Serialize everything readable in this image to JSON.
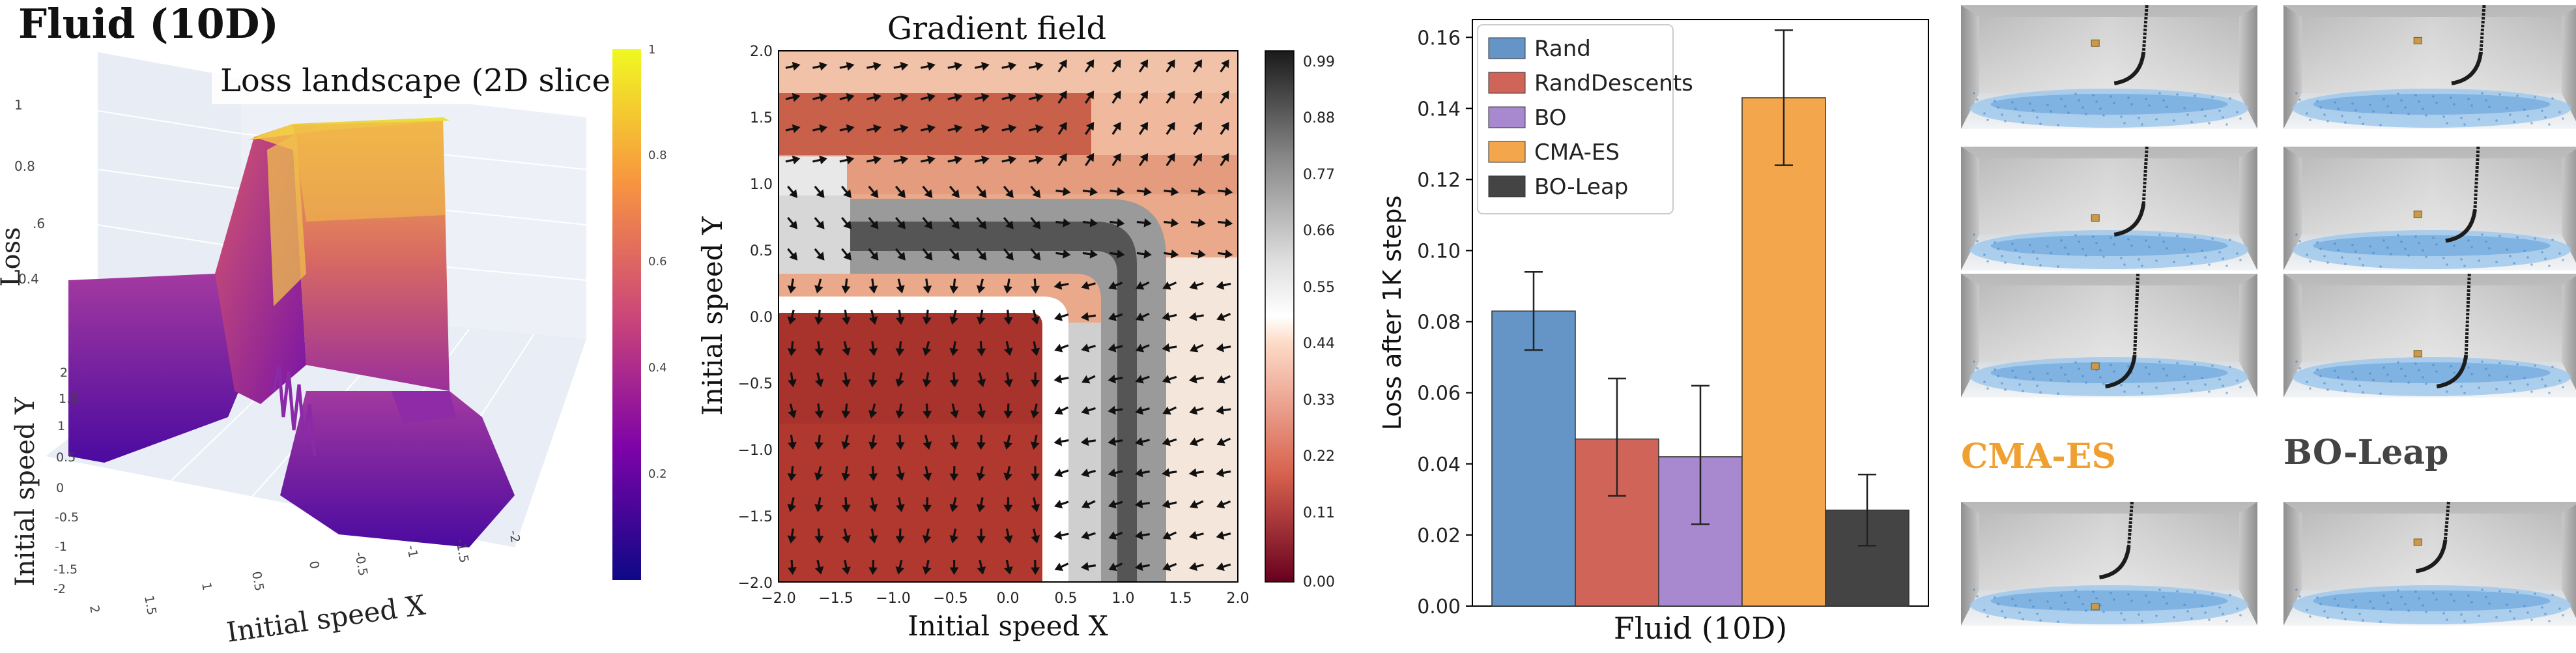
{
  "header": {
    "title": "Fluid (10D)"
  },
  "colors": {
    "rand": "#6495c6",
    "randdescents": "#d16459",
    "bo": "#a889cf",
    "cmaes": "#f3a64b",
    "boleap": "#444444",
    "cmaes_label": "#f0a030",
    "boleap_label": "#444444"
  },
  "chart_data": [
    {
      "type": "surface",
      "title": "Loss landscape (2D slice)",
      "xlabel": "Initial speed X",
      "ylabel": "Initial speed Y",
      "zlabel": "Loss",
      "x_ticks": [
        "2",
        "1.5",
        "1",
        "0.5",
        "0",
        "-0.5",
        "-1",
        "-1.5",
        "-2"
      ],
      "y_ticks": [
        "2",
        "1.5",
        "1",
        "0.5",
        "0",
        "-0.5",
        "-1",
        "-1.5",
        "-2"
      ],
      "z_ticks": [
        "1",
        "0.8",
        ".6",
        "0.4"
      ],
      "xlim": [
        -2,
        2
      ],
      "ylim": [
        -2,
        2
      ],
      "zlim": [
        0,
        1
      ],
      "colorbar": {
        "ticks": [
          "1",
          "0.8",
          "0.6",
          "0.4",
          "0.2"
        ],
        "range": [
          0,
          1
        ],
        "colormap": "plasma"
      }
    },
    {
      "type": "heatmap",
      "title": "Gradient field",
      "xlabel": "Initial speed X",
      "ylabel": "Initial speed Y",
      "xlim": [
        -2,
        2
      ],
      "ylim": [
        -2,
        2
      ],
      "x_ticks": [
        "−2.0",
        "−1.5",
        "−1.0",
        "−0.5",
        "0.0",
        "0.5",
        "1.0",
        "1.5",
        "2.0"
      ],
      "y_ticks": [
        "2.0",
        "1.5",
        "1.0",
        "0.5",
        "0.0",
        "−0.5",
        "−1.0",
        "−1.5",
        "−2.0"
      ],
      "colorbar": {
        "ticks": [
          "0.99",
          "0.88",
          "0.77",
          "0.66",
          "0.55",
          "0.44",
          "0.33",
          "0.22",
          "0.11",
          "0.00"
        ],
        "range": [
          0,
          0.99
        ],
        "colormap": "RdGy"
      }
    },
    {
      "type": "bar",
      "title": "",
      "xlabel": "Fluid (10D)",
      "ylabel": "Loss after 1K steps",
      "ylim": [
        0,
        0.165
      ],
      "y_ticks": [
        "0.00",
        "0.02",
        "0.04",
        "0.06",
        "0.08",
        "0.10",
        "0.12",
        "0.14",
        "0.16"
      ],
      "legend_position": "top-left",
      "series": [
        {
          "name": "Rand",
          "value": 0.083,
          "err_low": 0.072,
          "err_high": 0.094
        },
        {
          "name": "RandDescents",
          "value": 0.047,
          "err_low": 0.031,
          "err_high": 0.064
        },
        {
          "name": "BO",
          "value": 0.042,
          "err_low": 0.023,
          "err_high": 0.062
        },
        {
          "name": "CMA-ES",
          "value": 0.143,
          "err_low": 0.124,
          "err_high": 0.162
        },
        {
          "name": "BO-Leap",
          "value": 0.027,
          "err_low": 0.017,
          "err_high": 0.037
        }
      ]
    }
  ],
  "simulation": {
    "label_cmaes": "CMA-ES",
    "label_boleap": "BO-Leap"
  }
}
